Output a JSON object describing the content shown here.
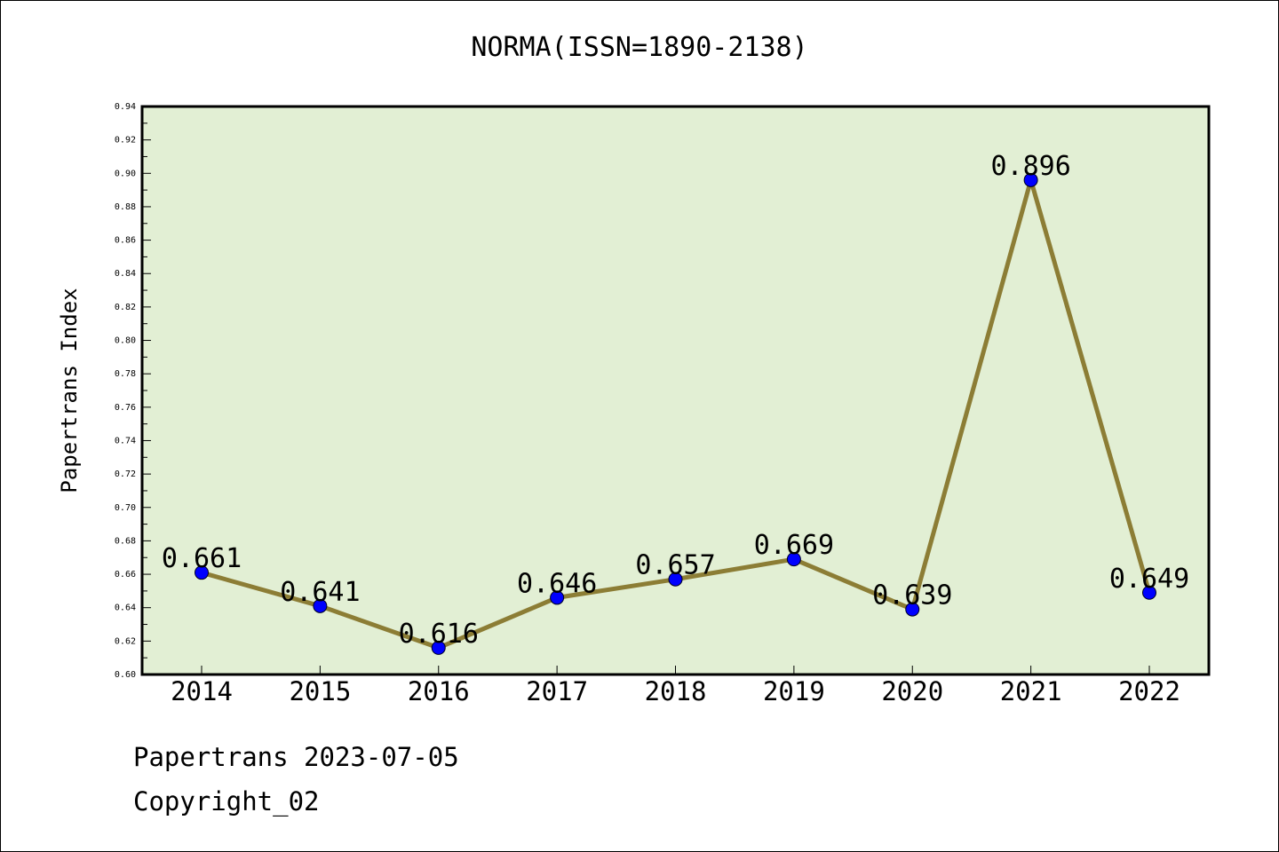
{
  "title": "NORMA(ISSN=1890-2138)",
  "footer": {
    "line1": "Papertrans 2023-07-05",
    "line2": "Copyright_02"
  },
  "colors": {
    "plot_background": "#e2efd4",
    "line": "#8c7d35",
    "marker": "#0000ff"
  },
  "chart_data": {
    "type": "line",
    "title": "NORMA(ISSN=1890-2138)",
    "xlabel": "",
    "ylabel": "Papertrans Index",
    "categories": [
      "2014",
      "2015",
      "2016",
      "2017",
      "2018",
      "2019",
      "2020",
      "2021",
      "2022"
    ],
    "series": [
      {
        "values": [
          0.661,
          0.641,
          0.616,
          0.646,
          0.657,
          0.669,
          0.639,
          0.896,
          0.649
        ],
        "labels": [
          "0.661",
          "0.641",
          "0.616",
          "0.646",
          "0.657",
          "0.669",
          "0.639",
          "0.896",
          "0.649"
        ]
      }
    ],
    "ylim": [
      0.6,
      0.94
    ],
    "yticks": [
      "0.60",
      "0.62",
      "0.64",
      "0.66",
      "0.68",
      "0.70",
      "0.72",
      "0.74",
      "0.76",
      "0.78",
      "0.80",
      "0.82",
      "0.84",
      "0.86",
      "0.88",
      "0.90",
      "0.92",
      "0.94"
    ],
    "grid": false,
    "legend": "none"
  }
}
